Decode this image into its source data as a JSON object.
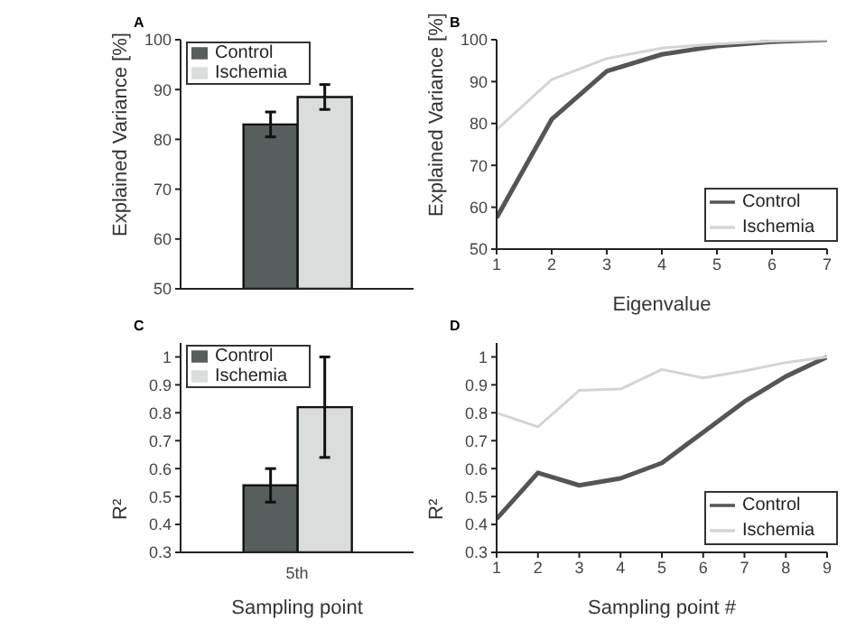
{
  "chart_data": [
    {
      "type": "bar",
      "title": "A",
      "categories": [
        null
      ],
      "ylabel": "Explained Variance [%]",
      "ylim": [
        50,
        100
      ],
      "yticks": [
        50,
        60,
        70,
        80,
        90,
        100
      ],
      "legend": "top left",
      "series": [
        {
          "name": "Control",
          "color": "#585d5d",
          "values": [
            83
          ],
          "errors": [
            2.5
          ]
        },
        {
          "name": "Ischemia",
          "color": "#d9dddc",
          "values": [
            88.5
          ],
          "errors": [
            2.5
          ]
        }
      ]
    },
    {
      "type": "line",
      "title": "B",
      "x": [
        1,
        2,
        3,
        4,
        5,
        6,
        7
      ],
      "xlabel": "Eigenvalue",
      "ylabel": "Explained Variance [%]",
      "xlim": [
        1,
        7
      ],
      "xticks": [
        1,
        2,
        3,
        4,
        5,
        6,
        7
      ],
      "ylim": [
        50,
        100
      ],
      "yticks": [
        50,
        60,
        70,
        80,
        90,
        100
      ],
      "legend": "bottom right",
      "series": [
        {
          "name": "Control",
          "color": "#555555",
          "values": [
            57.5,
            81,
            92.5,
            96.5,
            98.5,
            99.5,
            100
          ]
        },
        {
          "name": "Ischemia",
          "color": "#d4d4d4",
          "values": [
            78.5,
            90.5,
            95.5,
            98,
            99,
            99.7,
            100
          ]
        }
      ]
    },
    {
      "type": "bar",
      "title": "C",
      "categories": [
        "5th"
      ],
      "xlabel": "Sampling point",
      "ylabel": "R²",
      "ylim": [
        0.3,
        1.05
      ],
      "yticks": [
        0.3,
        0.4,
        0.5,
        0.6,
        0.7,
        0.8,
        0.9,
        1
      ],
      "legend": "top left",
      "series": [
        {
          "name": "Control",
          "color": "#585d5d",
          "values": [
            0.54
          ],
          "errors": [
            [
              0.48,
              0.6
            ]
          ]
        },
        {
          "name": "Ischemia",
          "color": "#d9dddc",
          "values": [
            0.82
          ],
          "errors": [
            [
              0.64,
              1.0
            ]
          ]
        }
      ]
    },
    {
      "type": "line",
      "title": "D",
      "x": [
        1,
        2,
        3,
        4,
        5,
        6,
        7,
        8,
        9
      ],
      "xlabel": "Sampling point #",
      "ylabel": "R²",
      "xlim": [
        1,
        9
      ],
      "xticks": [
        1,
        2,
        3,
        4,
        5,
        6,
        7,
        8,
        9
      ],
      "ylim": [
        0.3,
        1.05
      ],
      "yticks": [
        0.3,
        0.4,
        0.5,
        0.6,
        0.7,
        0.8,
        0.9,
        1
      ],
      "legend": "bottom right",
      "series": [
        {
          "name": "Control",
          "color": "#555555",
          "values": [
            0.42,
            0.585,
            0.54,
            0.565,
            0.62,
            0.73,
            0.84,
            0.93,
            1.0
          ]
        },
        {
          "name": "Ischemia",
          "color": "#d4d4d4",
          "values": [
            0.8,
            0.75,
            0.88,
            0.885,
            0.955,
            0.925,
            0.95,
            0.98,
            1.0
          ]
        }
      ]
    }
  ]
}
